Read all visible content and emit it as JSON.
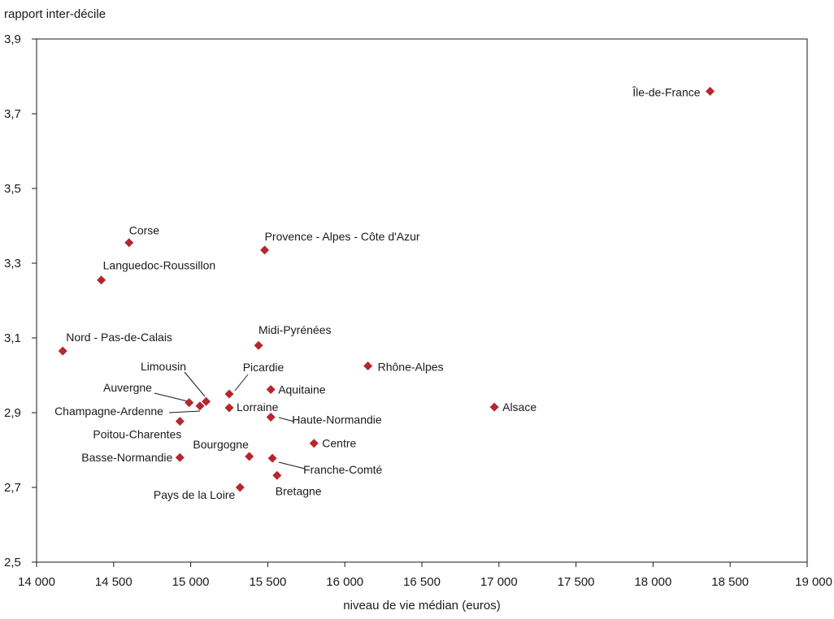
{
  "chart_data": {
    "type": "scatter",
    "xlabel": "niveau de vie médian (euros)",
    "ylabel": "rapport inter-décile",
    "xlim": [
      14000,
      19000
    ],
    "ylim": [
      2.5,
      3.9
    ],
    "x_ticks": [
      "14 000",
      "14 500",
      "15 000",
      "15 500",
      "16 000",
      "16 500",
      "17 000",
      "17 500",
      "18 000",
      "18 500",
      "19 000"
    ],
    "y_ticks": [
      "2,5",
      "2,7",
      "2,9",
      "3,1",
      "3,3",
      "3,5",
      "3,7",
      "3,9"
    ],
    "marker": "diamond",
    "marker_color": "#b5262f",
    "grid": false,
    "points": [
      {
        "label": "Île-de-France",
        "x": 18370,
        "y": 3.76
      },
      {
        "label": "Corse",
        "x": 14600,
        "y": 3.355
      },
      {
        "label": "Provence - Alpes - Côte d'Azur",
        "x": 15480,
        "y": 3.335
      },
      {
        "label": "Languedoc-Roussillon",
        "x": 14420,
        "y": 3.255
      },
      {
        "label": "Nord - Pas-de-Calais",
        "x": 14170,
        "y": 3.065
      },
      {
        "label": "Midi-Pyrénées",
        "x": 15440,
        "y": 3.08
      },
      {
        "label": "Rhône-Alpes",
        "x": 16150,
        "y": 3.025
      },
      {
        "label": "Alsace",
        "x": 16970,
        "y": 2.915
      },
      {
        "label": "Limousin",
        "x": 15100,
        "y": 2.93
      },
      {
        "label": "Picardie",
        "x": 15250,
        "y": 2.95
      },
      {
        "label": "Aquitaine",
        "x": 15520,
        "y": 2.962
      },
      {
        "label": "Auvergne",
        "x": 14990,
        "y": 2.927
      },
      {
        "label": "Champagne-Ardenne",
        "x": 15060,
        "y": 2.918
      },
      {
        "label": "Lorraine",
        "x": 15250,
        "y": 2.913
      },
      {
        "label": "Haute-Normandie",
        "x": 15520,
        "y": 2.888
      },
      {
        "label": "Poitou-Charentes",
        "x": 14930,
        "y": 2.877
      },
      {
        "label": "Centre",
        "x": 15800,
        "y": 2.818
      },
      {
        "label": "Bourgogne",
        "x": 15380,
        "y": 2.783
      },
      {
        "label": "Basse-Normandie",
        "x": 14930,
        "y": 2.78
      },
      {
        "label": "Franche-Comté",
        "x": 15530,
        "y": 2.778
      },
      {
        "label": "Bretagne",
        "x": 15560,
        "y": 2.732
      },
      {
        "label": "Pays de la Loire",
        "x": 15320,
        "y": 2.7
      }
    ]
  }
}
